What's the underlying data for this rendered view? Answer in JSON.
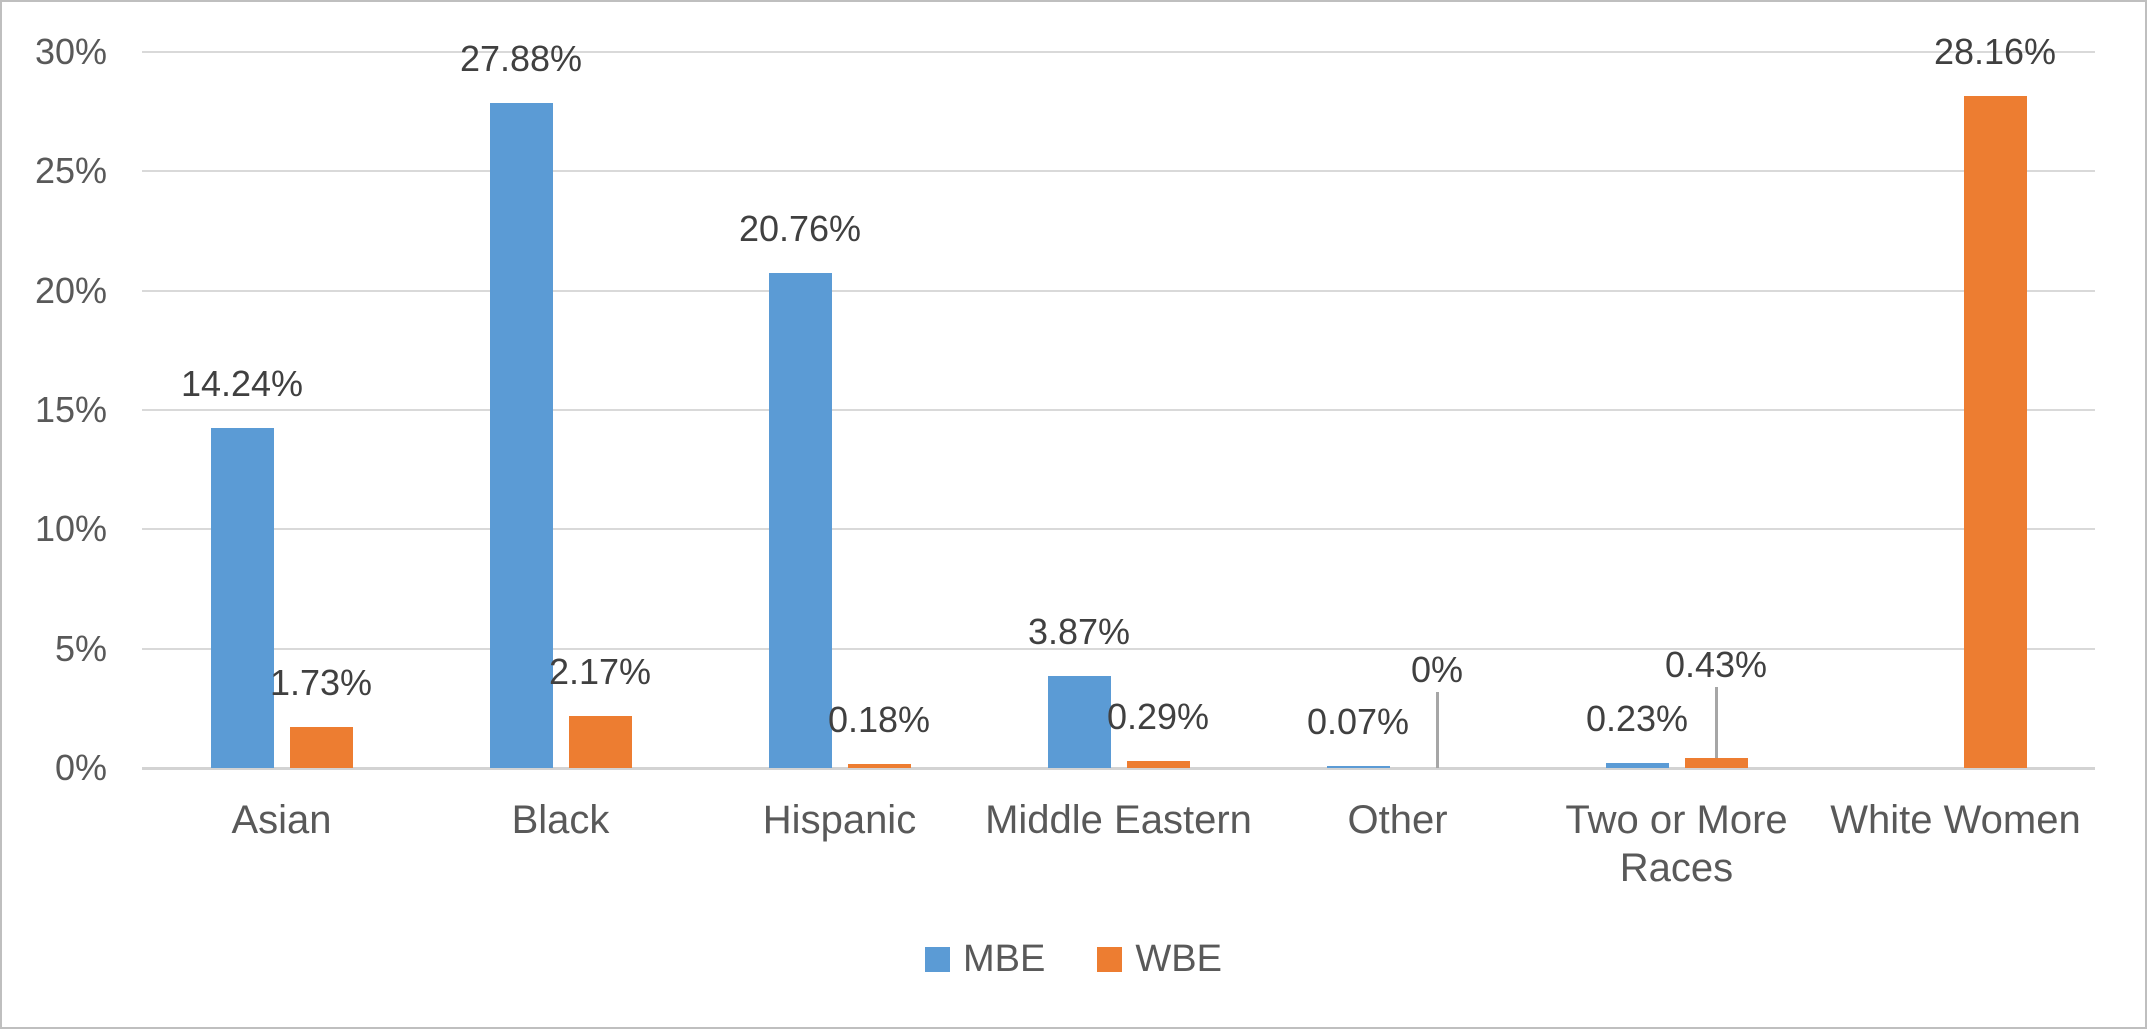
{
  "chart_data": {
    "type": "bar",
    "title": "",
    "xlabel": "",
    "ylabel": "",
    "categories": [
      "Asian",
      "Black",
      "Hispanic",
      "Middle Eastern",
      "Other",
      "Two or More Races",
      "White Women"
    ],
    "series": [
      {
        "name": "MBE",
        "color": "#5B9BD5",
        "values": [
          14.24,
          27.88,
          20.76,
          3.87,
          0.07,
          0.23,
          null
        ],
        "labels": [
          "14.24%",
          "27.88%",
          "20.76%",
          "3.87%",
          "0.07%",
          "0.23%",
          ""
        ]
      },
      {
        "name": "WBE",
        "color": "#ED7D31",
        "values": [
          1.73,
          2.17,
          0.18,
          0.29,
          0,
          0.43,
          28.16
        ],
        "labels": [
          "1.73%",
          "2.17%",
          "0.18%",
          "0.29%",
          "0%",
          "0.43%",
          "28.16%"
        ]
      }
    ],
    "y_ticks": [
      "0%",
      "5%",
      "10%",
      "15%",
      "20%",
      "25%",
      "30%"
    ],
    "ylim": [
      0,
      30
    ],
    "grid": true,
    "legend_position": "bottom",
    "colors": {
      "mbe": "#5B9BD5",
      "wbe": "#ED7D31",
      "gridline": "#D9D9D9",
      "axis_text": "#595959",
      "data_label_text": "#404040",
      "leader_line": "#A6A6A6",
      "frame_border": "#BFBFBF"
    }
  }
}
